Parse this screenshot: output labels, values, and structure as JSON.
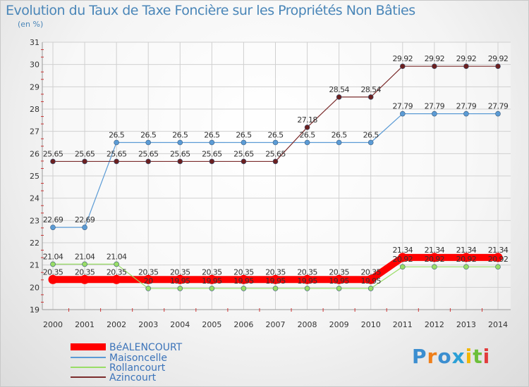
{
  "title": "Evolution du Taux de Taxe Foncière sur les Propriétés Non Bâties",
  "subtitle": "(en %)",
  "brand": "Proxiti",
  "chart_data": {
    "type": "line",
    "ylim": [
      19,
      31
    ],
    "yticks": [
      "19",
      "20",
      "21",
      "22",
      "23",
      "24",
      "25",
      "26",
      "27",
      "28",
      "29",
      "30",
      "31"
    ],
    "x": [
      "2000",
      "2001",
      "2002",
      "2003",
      "2004",
      "2005",
      "2006",
      "2007",
      "2008",
      "2009",
      "2010",
      "2011",
      "2012",
      "2013",
      "2014"
    ],
    "series": [
      {
        "name": "BéALENCOURT",
        "color": "#ff0000",
        "values": [
          20.35,
          20.35,
          20.35,
          20.35,
          20.35,
          20.35,
          20.35,
          20.35,
          20.35,
          20.35,
          20.35,
          21.34,
          21.34,
          21.34,
          21.34
        ],
        "labels": [
          "20.35",
          "20.35",
          "20.35",
          "20.35",
          "20.35",
          "20.35",
          "20.35",
          "20.35",
          "20.35",
          "20.35",
          "20.35",
          "21.34",
          "21.34",
          "21.34",
          "21.34"
        ]
      },
      {
        "name": "Maisoncelle",
        "color": "#5b9bd5",
        "values": [
          22.69,
          22.69,
          26.5,
          26.5,
          26.5,
          26.5,
          26.5,
          26.5,
          26.5,
          26.5,
          26.5,
          27.79,
          27.79,
          27.79,
          27.79
        ],
        "labels": [
          "22.69",
          "22.69",
          "26.5",
          "26.5",
          "26.5",
          "26.5",
          "26.5",
          "26.5",
          "26.5",
          "26.5",
          "26.5",
          "27.79",
          "27.79",
          "27.79",
          "27.79"
        ]
      },
      {
        "name": "Rollancourt",
        "color": "#99dd66",
        "values": [
          21.04,
          21.04,
          21.04,
          19.95,
          19.95,
          19.95,
          19.95,
          19.95,
          19.95,
          19.95,
          19.95,
          20.92,
          20.92,
          20.92,
          20.92
        ],
        "labels": [
          "21.04",
          "21.04",
          "21.04",
          "20",
          "19.95",
          "19.95",
          "19.95",
          "19.95",
          "19.95",
          "19.95",
          "19.95",
          "20.92",
          "20.92",
          "20.92",
          "20.92"
        ]
      },
      {
        "name": "Azincourt",
        "color": "#7b2c2c",
        "values": [
          25.65,
          25.65,
          25.65,
          25.65,
          25.65,
          25.65,
          25.65,
          25.65,
          27.18,
          28.54,
          28.54,
          29.92,
          29.92,
          29.92,
          29.92
        ],
        "labels": [
          "25.65",
          "25.65",
          "25.65",
          "25.65",
          "25.65",
          "25.65",
          "25.65",
          "25.65",
          "27.18",
          "28.54",
          "28.54",
          "29.92",
          "29.92",
          "29.92",
          "29.92"
        ]
      }
    ],
    "legend": [
      "BéALENCOURT",
      "Maisoncelle",
      "Rollancourt",
      "Azincourt"
    ],
    "legend_position": "bottom-left",
    "grid": true
  }
}
